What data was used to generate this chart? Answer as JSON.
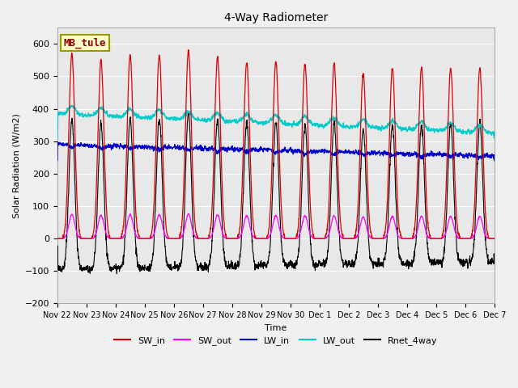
{
  "title": "4-Way Radiometer",
  "xlabel": "Time",
  "ylabel": "Solar Radiation (W/m2)",
  "ylim": [
    -200,
    650
  ],
  "station_label": "MB_tule",
  "plot_bg_color": "#e8e8e8",
  "fig_bg_color": "#f0f0f0",
  "grid_color": "white",
  "colors": {
    "SW_in": "#dd0000",
    "SW_out": "#ff00ff",
    "LW_in": "#0000cc",
    "LW_out": "#00cccc",
    "Rnet_4way": "#000000"
  },
  "legend_labels": [
    "SW_in",
    "SW_out",
    "LW_in",
    "LW_out",
    "Rnet_4way"
  ],
  "x_tick_labels": [
    "Nov 22",
    "Nov 23",
    "Nov 24",
    "Nov 25",
    "Nov 26",
    "Nov 27",
    "Nov 28",
    "Nov 29",
    "Nov 30",
    "Dec 1",
    "Dec 2",
    "Dec 3",
    "Dec 4",
    "Dec 5",
    "Dec 6",
    "Dec 7"
  ],
  "n_days": 15,
  "SW_in_peaks": [
    570,
    550,
    565,
    565,
    580,
    560,
    545,
    545,
    540,
    540,
    510,
    525,
    525,
    525,
    525
  ],
  "LW_in_base": 278,
  "LW_out_base": 370,
  "yticks": [
    -200,
    -100,
    0,
    100,
    200,
    300,
    400,
    500,
    600
  ]
}
